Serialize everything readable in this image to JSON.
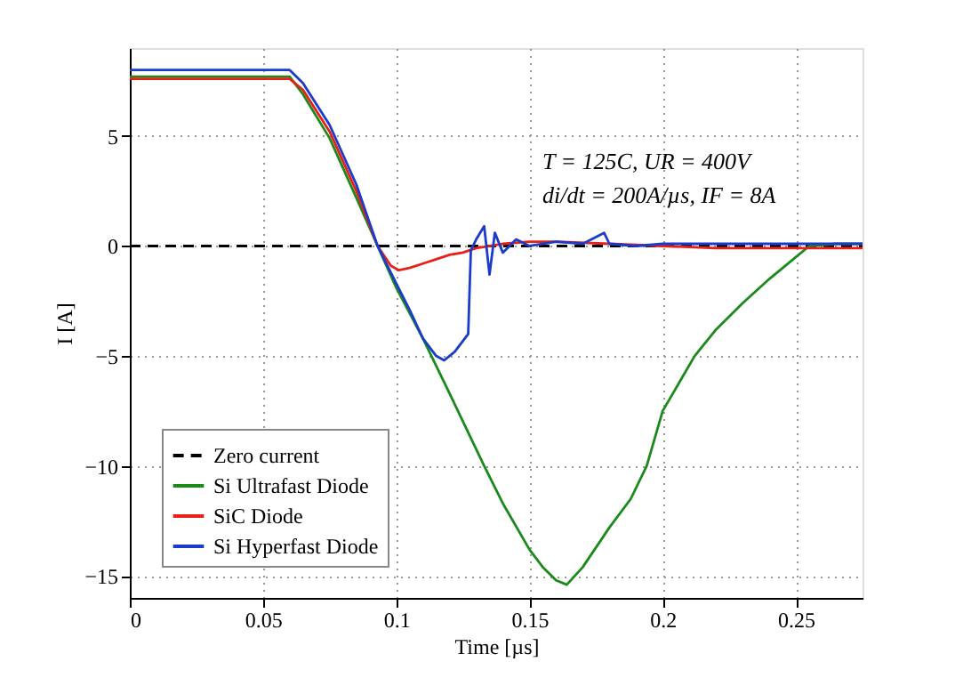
{
  "chart_data": {
    "type": "line",
    "xlabel": "Time [µs]",
    "ylabel": "I [A]",
    "xlim": [
      0,
      0.275
    ],
    "ylim": [
      -16,
      9
    ],
    "xticks": [
      0,
      0.05,
      0.1,
      0.15,
      0.2,
      0.25
    ],
    "yticks": [
      -15,
      -10,
      -5,
      0,
      5
    ],
    "grid": true,
    "legend": "bottom left",
    "marker": "none",
    "annotations": [
      "T = 125C, UR = 400V",
      "di/dt = 200A/µs, IF = 8A"
    ],
    "series": [
      {
        "name": "Zero current",
        "color": "#000000",
        "line_style": "dashed",
        "x": [
          0,
          0.275
        ],
        "values": [
          0,
          0
        ]
      },
      {
        "name": "Si Ultrafast Diode",
        "color": "#1a8a1a",
        "line_style": "solid",
        "x": [
          0,
          0.01,
          0.02,
          0.03,
          0.04,
          0.05,
          0.06,
          0.065,
          0.075,
          0.085,
          0.093,
          0.1,
          0.11,
          0.12,
          0.133,
          0.14,
          0.15,
          0.155,
          0.16,
          0.164,
          0.17,
          0.18,
          0.188,
          0.194,
          0.2,
          0.212,
          0.22,
          0.23,
          0.24,
          0.25,
          0.255,
          0.265,
          0.275
        ],
        "values": [
          7.7,
          7.7,
          7.7,
          7.7,
          7.7,
          7.7,
          7.7,
          6.9,
          4.9,
          2.2,
          0,
          -1.9,
          -4.2,
          -6.7,
          -10,
          -11.7,
          -13.8,
          -14.6,
          -15.2,
          -15.4,
          -14.6,
          -12.8,
          -11.5,
          -10,
          -7.5,
          -5,
          -3.8,
          -2.6,
          -1.5,
          -0.5,
          0,
          0.1,
          0.1
        ]
      },
      {
        "name": "SiC Diode",
        "color": "#e8201a",
        "line_style": "solid",
        "x": [
          0,
          0.01,
          0.02,
          0.03,
          0.04,
          0.05,
          0.06,
          0.065,
          0.075,
          0.085,
          0.093,
          0.098,
          0.101,
          0.105,
          0.11,
          0.115,
          0.12,
          0.125,
          0.13,
          0.14,
          0.15,
          0.16,
          0.18,
          0.2,
          0.22,
          0.24,
          0.26,
          0.275
        ],
        "values": [
          7.6,
          7.6,
          7.6,
          7.6,
          7.6,
          7.6,
          7.6,
          7.1,
          5.2,
          2.5,
          0,
          -0.9,
          -1.1,
          -1.0,
          -0.8,
          -0.6,
          -0.4,
          -0.3,
          -0.1,
          0.1,
          0.2,
          0.2,
          0.1,
          0,
          -0.1,
          -0.1,
          -0.1,
          -0.1
        ]
      },
      {
        "name": "Si Hyperfast Diode",
        "color": "#1a3cc8",
        "line_style": "solid",
        "x": [
          0,
          0.01,
          0.02,
          0.03,
          0.04,
          0.05,
          0.06,
          0.065,
          0.075,
          0.085,
          0.093,
          0.1,
          0.105,
          0.11,
          0.115,
          0.118,
          0.122,
          0.127,
          0.128,
          0.13,
          0.133,
          0.135,
          0.137,
          0.14,
          0.145,
          0.15,
          0.16,
          0.17,
          0.178,
          0.18,
          0.19,
          0.2,
          0.22,
          0.24,
          0.26,
          0.275
        ],
        "values": [
          8.0,
          8.0,
          8.0,
          8.0,
          8.0,
          8.0,
          8.0,
          7.4,
          5.5,
          2.8,
          0,
          -1.7,
          -2.9,
          -4.2,
          -5.0,
          -5.2,
          -4.8,
          -4.0,
          -0.2,
          0.3,
          0.9,
          -1.3,
          0.6,
          -0.3,
          0.3,
          0,
          0.2,
          0.1,
          0.6,
          0.1,
          0,
          0.1,
          0.1,
          0.1,
          0.1,
          0.1
        ]
      }
    ]
  }
}
